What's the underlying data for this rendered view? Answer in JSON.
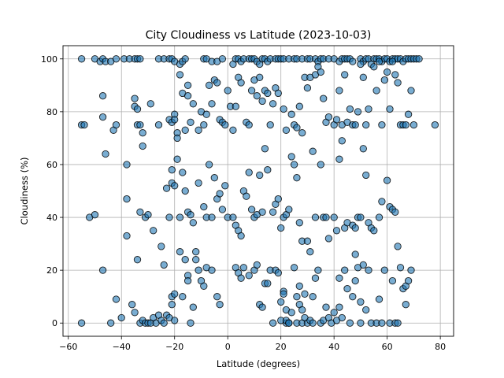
{
  "chart_data": {
    "type": "scatter",
    "title": "City Cloudiness vs Latitude (2023-10-03)",
    "xlabel": "Latitude (degrees)",
    "ylabel": "Cloudiness (%)",
    "xlim": [
      -62,
      85
    ],
    "ylim": [
      -5,
      105
    ],
    "xticks": [
      -60,
      -40,
      -20,
      0,
      20,
      40,
      60,
      80
    ],
    "yticks": [
      0,
      20,
      40,
      60,
      80,
      100
    ],
    "xtick_labels": [
      "−60",
      "−40",
      "−20",
      "0",
      "20",
      "40",
      "60",
      "80"
    ],
    "ytick_labels": [
      "0",
      "20",
      "40",
      "60",
      "80",
      "100"
    ],
    "grid": true,
    "legend": "none",
    "point_color": "#1f77b4",
    "edge_color": "#000000",
    "points": [
      [
        -55,
        100
      ],
      [
        -50,
        100
      ],
      [
        -48,
        99
      ],
      [
        -47,
        100
      ],
      [
        -46,
        99
      ],
      [
        -44,
        99
      ],
      [
        -42,
        100
      ],
      [
        -39,
        100
      ],
      [
        -37,
        100
      ],
      [
        -35,
        100
      ],
      [
        -34,
        100
      ],
      [
        -33,
        100
      ],
      [
        -26,
        100
      ],
      [
        -24,
        100
      ],
      [
        -22,
        100
      ],
      [
        -21,
        100
      ],
      [
        -20,
        99
      ],
      [
        -18,
        98
      ],
      [
        -17,
        99
      ],
      [
        -16,
        100
      ],
      [
        -9,
        100
      ],
      [
        -8,
        100
      ],
      [
        -6,
        99
      ],
      [
        -4,
        99
      ],
      [
        -2,
        100
      ],
      [
        2,
        98
      ],
      [
        3,
        100
      ],
      [
        4,
        100
      ],
      [
        5,
        99
      ],
      [
        6,
        100
      ],
      [
        8,
        100
      ],
      [
        9,
        100
      ],
      [
        10,
        100
      ],
      [
        11,
        99
      ],
      [
        12,
        98
      ],
      [
        13,
        100
      ],
      [
        14,
        100
      ],
      [
        15,
        99
      ],
      [
        16,
        100
      ],
      [
        18,
        100
      ],
      [
        19,
        100
      ],
      [
        20,
        100
      ],
      [
        21,
        100
      ],
      [
        23,
        100
      ],
      [
        25,
        100
      ],
      [
        26,
        100
      ],
      [
        28,
        100
      ],
      [
        30,
        100
      ],
      [
        31,
        100
      ],
      [
        33,
        100
      ],
      [
        34,
        99
      ],
      [
        35,
        100
      ],
      [
        36,
        100
      ],
      [
        38,
        100
      ],
      [
        40,
        100
      ],
      [
        42,
        99
      ],
      [
        43,
        100
      ],
      [
        44,
        100
      ],
      [
        45,
        100
      ],
      [
        46,
        100
      ],
      [
        47,
        99
      ],
      [
        50,
        100
      ],
      [
        51,
        99
      ],
      [
        52,
        100
      ],
      [
        53,
        100
      ],
      [
        55,
        100
      ],
      [
        56,
        100
      ],
      [
        57,
        100
      ],
      [
        58,
        99
      ],
      [
        59,
        100
      ],
      [
        60,
        100
      ],
      [
        61,
        99
      ],
      [
        62,
        100
      ],
      [
        63,
        100
      ],
      [
        64,
        100
      ],
      [
        65,
        100
      ],
      [
        66,
        99
      ],
      [
        67,
        100
      ],
      [
        68,
        100
      ],
      [
        69,
        100
      ],
      [
        70,
        100
      ],
      [
        71,
        100
      ],
      [
        72,
        100
      ],
      [
        -55,
        75
      ],
      [
        -54,
        75
      ],
      [
        -47,
        86
      ],
      [
        -47,
        78
      ],
      [
        -46,
        64
      ],
      [
        -43,
        73
      ],
      [
        -42,
        75
      ],
      [
        -38,
        60
      ],
      [
        -35,
        85
      ],
      [
        -35,
        82
      ],
      [
        -34,
        81
      ],
      [
        -34,
        75
      ],
      [
        -33,
        75
      ],
      [
        -32,
        72
      ],
      [
        -32,
        67
      ],
      [
        -29,
        83
      ],
      [
        -26,
        75
      ],
      [
        -22,
        77
      ],
      [
        -21,
        76
      ],
      [
        -20,
        79
      ],
      [
        -20,
        77
      ],
      [
        -19,
        72
      ],
      [
        -19,
        70
      ],
      [
        -18,
        94
      ],
      [
        -17,
        87
      ],
      [
        -16,
        73
      ],
      [
        -15,
        86
      ],
      [
        -15,
        90
      ],
      [
        -14,
        76
      ],
      [
        -13,
        83
      ],
      [
        -11,
        73
      ],
      [
        -10,
        80
      ],
      [
        -9,
        75
      ],
      [
        -8,
        79
      ],
      [
        -7,
        90
      ],
      [
        -6,
        83
      ],
      [
        -5,
        92
      ],
      [
        -4,
        91
      ],
      [
        -3,
        77
      ],
      [
        -2,
        76
      ],
      [
        -1,
        75
      ],
      [
        0,
        88
      ],
      [
        1,
        82
      ],
      [
        2,
        73
      ],
      [
        3,
        82
      ],
      [
        4,
        93
      ],
      [
        5,
        91
      ],
      [
        7,
        76
      ],
      [
        8,
        75
      ],
      [
        9,
        88
      ],
      [
        10,
        92
      ],
      [
        11,
        86
      ],
      [
        12,
        93
      ],
      [
        13,
        84
      ],
      [
        14,
        88
      ],
      [
        15,
        87
      ],
      [
        16,
        75
      ],
      [
        17,
        83
      ],
      [
        18,
        89
      ],
      [
        19,
        87
      ],
      [
        21,
        81
      ],
      [
        22,
        73
      ],
      [
        24,
        79
      ],
      [
        25,
        75
      ],
      [
        26,
        74
      ],
      [
        27,
        82
      ],
      [
        28,
        72
      ],
      [
        29,
        93
      ],
      [
        30,
        89
      ],
      [
        31,
        93
      ],
      [
        33,
        94
      ],
      [
        34,
        97
      ],
      [
        35,
        95
      ],
      [
        36,
        85
      ],
      [
        37,
        76
      ],
      [
        38,
        78
      ],
      [
        40,
        75
      ],
      [
        41,
        77
      ],
      [
        42,
        88
      ],
      [
        43,
        75
      ],
      [
        44,
        94
      ],
      [
        45,
        76
      ],
      [
        46,
        81
      ],
      [
        47,
        75
      ],
      [
        48,
        75
      ],
      [
        49,
        80
      ],
      [
        50,
        98
      ],
      [
        51,
        93
      ],
      [
        52,
        75
      ],
      [
        53,
        81
      ],
      [
        54,
        98
      ],
      [
        55,
        97
      ],
      [
        56,
        88
      ],
      [
        57,
        99
      ],
      [
        58,
        75
      ],
      [
        59,
        92
      ],
      [
        60,
        95
      ],
      [
        61,
        81
      ],
      [
        62,
        99
      ],
      [
        63,
        94
      ],
      [
        64,
        91
      ],
      [
        65,
        75
      ],
      [
        66,
        75
      ],
      [
        67,
        75
      ],
      [
        68,
        79
      ],
      [
        69,
        88
      ],
      [
        70,
        75
      ],
      [
        78,
        75
      ],
      [
        -52,
        40
      ],
      [
        -50,
        41
      ],
      [
        -38,
        47
      ],
      [
        -38,
        33
      ],
      [
        -34,
        24
      ],
      [
        -33,
        42
      ],
      [
        -31,
        40
      ],
      [
        -30,
        41
      ],
      [
        -28,
        35
      ],
      [
        -25,
        29
      ],
      [
        -24,
        22
      ],
      [
        -23,
        51
      ],
      [
        -22,
        40
      ],
      [
        -21,
        53
      ],
      [
        -21,
        58
      ],
      [
        -20,
        52
      ],
      [
        -19,
        62
      ],
      [
        -18,
        40
      ],
      [
        -17,
        57
      ],
      [
        -16,
        50
      ],
      [
        -15,
        42
      ],
      [
        -14,
        41
      ],
      [
        -13,
        38
      ],
      [
        -12,
        27
      ],
      [
        -11,
        53
      ],
      [
        -9,
        44
      ],
      [
        -8,
        40
      ],
      [
        -7,
        60
      ],
      [
        -6,
        40
      ],
      [
        -5,
        55
      ],
      [
        -4,
        47
      ],
      [
        -3,
        49
      ],
      [
        -2,
        43
      ],
      [
        -1,
        52
      ],
      [
        0,
        40
      ],
      [
        2,
        40
      ],
      [
        3,
        37
      ],
      [
        4,
        35
      ],
      [
        5,
        33
      ],
      [
        6,
        50
      ],
      [
        7,
        48
      ],
      [
        8,
        57
      ],
      [
        9,
        43
      ],
      [
        10,
        40
      ],
      [
        11,
        41
      ],
      [
        12,
        56
      ],
      [
        13,
        42
      ],
      [
        14,
        66
      ],
      [
        15,
        58
      ],
      [
        17,
        42
      ],
      [
        18,
        45
      ],
      [
        19,
        47
      ],
      [
        20,
        36
      ],
      [
        21,
        40
      ],
      [
        22,
        41
      ],
      [
        23,
        43
      ],
      [
        24,
        63
      ],
      [
        25,
        60
      ],
      [
        26,
        55
      ],
      [
        27,
        38
      ],
      [
        28,
        31
      ],
      [
        30,
        31
      ],
      [
        31,
        27
      ],
      [
        32,
        65
      ],
      [
        33,
        40
      ],
      [
        35,
        60
      ],
      [
        36,
        40
      ],
      [
        37,
        40
      ],
      [
        38,
        32
      ],
      [
        40,
        40
      ],
      [
        41,
        35
      ],
      [
        42,
        62
      ],
      [
        43,
        69
      ],
      [
        44,
        36
      ],
      [
        45,
        38
      ],
      [
        47,
        37
      ],
      [
        48,
        36
      ],
      [
        49,
        40
      ],
      [
        50,
        40
      ],
      [
        51,
        66
      ],
      [
        52,
        56
      ],
      [
        53,
        38
      ],
      [
        54,
        36
      ],
      [
        55,
        35
      ],
      [
        57,
        40
      ],
      [
        58,
        46
      ],
      [
        60,
        54
      ],
      [
        61,
        44
      ],
      [
        62,
        43
      ],
      [
        63,
        42
      ],
      [
        64,
        29
      ],
      [
        -55,
        0
      ],
      [
        -42,
        9
      ],
      [
        -40,
        2
      ],
      [
        -36,
        7
      ],
      [
        -35,
        4
      ],
      [
        -33,
        0
      ],
      [
        -32,
        1
      ],
      [
        -31,
        0
      ],
      [
        -30,
        0
      ],
      [
        -29,
        0
      ],
      [
        -28,
        2
      ],
      [
        -27,
        0
      ],
      [
        -26,
        3
      ],
      [
        -25,
        1
      ],
      [
        -24,
        0
      ],
      [
        -23,
        3
      ],
      [
        -22,
        2
      ],
      [
        -21,
        10
      ],
      [
        -21,
        7
      ],
      [
        -20,
        11
      ],
      [
        -20,
        1
      ],
      [
        -18,
        27
      ],
      [
        -17,
        10
      ],
      [
        -16,
        24
      ],
      [
        -15,
        18
      ],
      [
        -15,
        16
      ],
      [
        -14,
        0
      ],
      [
        -13,
        6
      ],
      [
        -12,
        24
      ],
      [
        -11,
        20
      ],
      [
        -10,
        16
      ],
      [
        -9,
        14
      ],
      [
        -8,
        21
      ],
      [
        -6,
        20
      ],
      [
        -4,
        10
      ],
      [
        -3,
        7
      ],
      [
        3,
        21
      ],
      [
        4,
        19
      ],
      [
        5,
        17
      ],
      [
        6,
        21
      ],
      [
        8,
        18
      ],
      [
        10,
        20
      ],
      [
        11,
        22
      ],
      [
        12,
        7
      ],
      [
        13,
        6
      ],
      [
        14,
        15
      ],
      [
        15,
        15
      ],
      [
        16,
        20
      ],
      [
        17,
        0
      ],
      [
        18,
        20
      ],
      [
        19,
        19
      ],
      [
        20,
        1
      ],
      [
        20,
        8
      ],
      [
        21,
        12
      ],
      [
        21,
        11
      ],
      [
        22,
        0
      ],
      [
        22,
        5
      ],
      [
        22,
        1
      ],
      [
        23,
        0
      ],
      [
        23,
        0
      ],
      [
        24,
        4
      ],
      [
        25,
        21
      ],
      [
        26,
        10
      ],
      [
        26,
        0
      ],
      [
        27,
        14
      ],
      [
        27,
        7
      ],
      [
        28,
        5
      ],
      [
        28,
        0
      ],
      [
        29,
        11
      ],
      [
        29,
        2
      ],
      [
        30,
        0
      ],
      [
        31,
        1
      ],
      [
        32,
        10
      ],
      [
        32,
        0
      ],
      [
        33,
        17
      ],
      [
        34,
        20
      ],
      [
        35,
        0
      ],
      [
        36,
        1
      ],
      [
        37,
        6
      ],
      [
        38,
        2
      ],
      [
        39,
        0
      ],
      [
        40,
        4
      ],
      [
        41,
        1
      ],
      [
        42,
        17
      ],
      [
        42,
        6
      ],
      [
        43,
        2
      ],
      [
        44,
        20
      ],
      [
        45,
        13
      ],
      [
        46,
        0
      ],
      [
        47,
        10
      ],
      [
        48,
        26
      ],
      [
        48,
        16
      ],
      [
        49,
        21
      ],
      [
        50,
        8
      ],
      [
        50,
        0
      ],
      [
        51,
        22
      ],
      [
        52,
        5
      ],
      [
        53,
        20
      ],
      [
        54,
        0
      ],
      [
        56,
        0
      ],
      [
        57,
        9
      ],
      [
        58,
        0
      ],
      [
        59,
        20
      ],
      [
        61,
        0
      ],
      [
        62,
        16
      ],
      [
        63,
        0
      ],
      [
        64,
        0
      ],
      [
        65,
        21
      ],
      [
        66,
        13
      ],
      [
        67,
        14
      ],
      [
        67,
        7
      ],
      [
        68,
        16
      ],
      [
        69,
        20
      ],
      [
        -47,
        20
      ],
      [
        -44,
        0
      ]
    ]
  }
}
